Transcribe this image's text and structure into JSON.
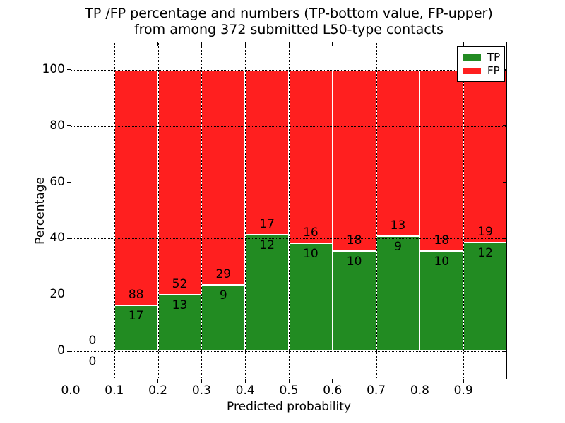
{
  "title": {
    "line1": "TP /FP percentage and numbers (TP-bottom value, FP-upper)",
    "line2": "from among 372 submitted L50-type contacts"
  },
  "axes": {
    "xlabel": "Predicted probability",
    "ylabel": "Percentage",
    "yticks": [
      {
        "value": 0,
        "label": "0"
      },
      {
        "value": 20,
        "label": "20"
      },
      {
        "value": 40,
        "label": "40"
      },
      {
        "value": 60,
        "label": "60"
      },
      {
        "value": 80,
        "label": "80"
      },
      {
        "value": 100,
        "label": "100"
      }
    ],
    "xticks": [
      {
        "value": 0.0,
        "label": "0.0"
      },
      {
        "value": 0.1,
        "label": "0.1"
      },
      {
        "value": 0.2,
        "label": "0.2"
      },
      {
        "value": 0.3,
        "label": "0.3"
      },
      {
        "value": 0.4,
        "label": "0.4"
      },
      {
        "value": 0.5,
        "label": "0.5"
      },
      {
        "value": 0.6,
        "label": "0.6"
      },
      {
        "value": 0.7,
        "label": "0.7"
      },
      {
        "value": 0.8,
        "label": "0.8"
      },
      {
        "value": 0.9,
        "label": "0.9"
      }
    ],
    "xlim": [
      0.0,
      1.0
    ],
    "ylim": [
      -10,
      110
    ],
    "grid": true
  },
  "legend": {
    "position": "upper right",
    "items": [
      {
        "label": "TP",
        "color": "#228b22"
      },
      {
        "label": "FP",
        "color": "#ff1f1f"
      }
    ]
  },
  "colors": {
    "tp": "#228b22",
    "fp": "#ff1f1f",
    "bar_edge": "#ffffff"
  },
  "chart_data": {
    "type": "bar",
    "stacked": true,
    "title": "TP /FP percentage and numbers (TP-bottom value, FP-upper) from among 372 submitted L50-type contacts",
    "xlabel": "Predicted probability",
    "ylabel": "Percentage",
    "total_contacts": 372,
    "bin_width": 0.1,
    "legend_entries": [
      "TP",
      "FP"
    ],
    "bins": [
      {
        "x0": 0.0,
        "x1": 0.1,
        "tp_count": 0,
        "fp_count": 0,
        "tp_pct": 0.0,
        "fp_pct": 0.0
      },
      {
        "x0": 0.1,
        "x1": 0.2,
        "tp_count": 17,
        "fp_count": 88,
        "tp_pct": 16.19,
        "fp_pct": 83.81
      },
      {
        "x0": 0.2,
        "x1": 0.3,
        "tp_count": 13,
        "fp_count": 52,
        "tp_pct": 20.0,
        "fp_pct": 80.0
      },
      {
        "x0": 0.3,
        "x1": 0.4,
        "tp_count": 9,
        "fp_count": 29,
        "tp_pct": 23.684,
        "fp_pct": 76.316
      },
      {
        "x0": 0.4,
        "x1": 0.5,
        "tp_count": 12,
        "fp_count": 17,
        "tp_pct": 41.379,
        "fp_pct": 58.621
      },
      {
        "x0": 0.5,
        "x1": 0.6,
        "tp_count": 10,
        "fp_count": 16,
        "tp_pct": 38.462,
        "fp_pct": 61.538
      },
      {
        "x0": 0.6,
        "x1": 0.7,
        "tp_count": 10,
        "fp_count": 18,
        "tp_pct": 35.714,
        "fp_pct": 64.286
      },
      {
        "x0": 0.7,
        "x1": 0.8,
        "tp_count": 9,
        "fp_count": 13,
        "tp_pct": 40.909,
        "fp_pct": 59.091
      },
      {
        "x0": 0.8,
        "x1": 0.9,
        "tp_count": 10,
        "fp_count": 18,
        "tp_pct": 35.714,
        "fp_pct": 64.286
      },
      {
        "x0": 0.9,
        "x1": 1.0,
        "tp_count": 12,
        "fp_count": 19,
        "tp_pct": 38.71,
        "fp_pct": 61.29
      }
    ]
  }
}
